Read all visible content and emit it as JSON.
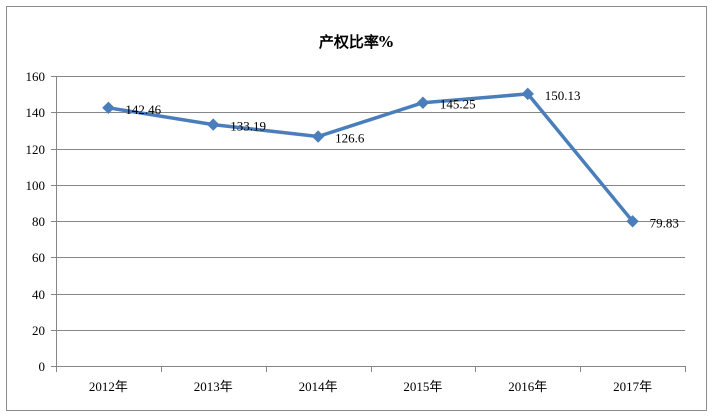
{
  "chart_data": {
    "type": "line",
    "title": "产权比率%",
    "categories": [
      "2012年",
      "2013年",
      "2014年",
      "2015年",
      "2016年",
      "2017年"
    ],
    "series": [
      {
        "values": [
          142.46,
          133.19,
          126.6,
          145.25,
          150.13,
          79.83
        ],
        "data_labels": [
          "142.46",
          "133.19",
          "126.6",
          "145.25",
          "150.13",
          "79.83"
        ],
        "color": "#4a7ebb",
        "marker": "diamond"
      }
    ],
    "xlabel": "",
    "ylabel": "",
    "ylim": [
      0,
      160
    ],
    "yticks": [
      0,
      20,
      40,
      60,
      80,
      100,
      120,
      140,
      160
    ],
    "grid": true,
    "legend": "none"
  }
}
